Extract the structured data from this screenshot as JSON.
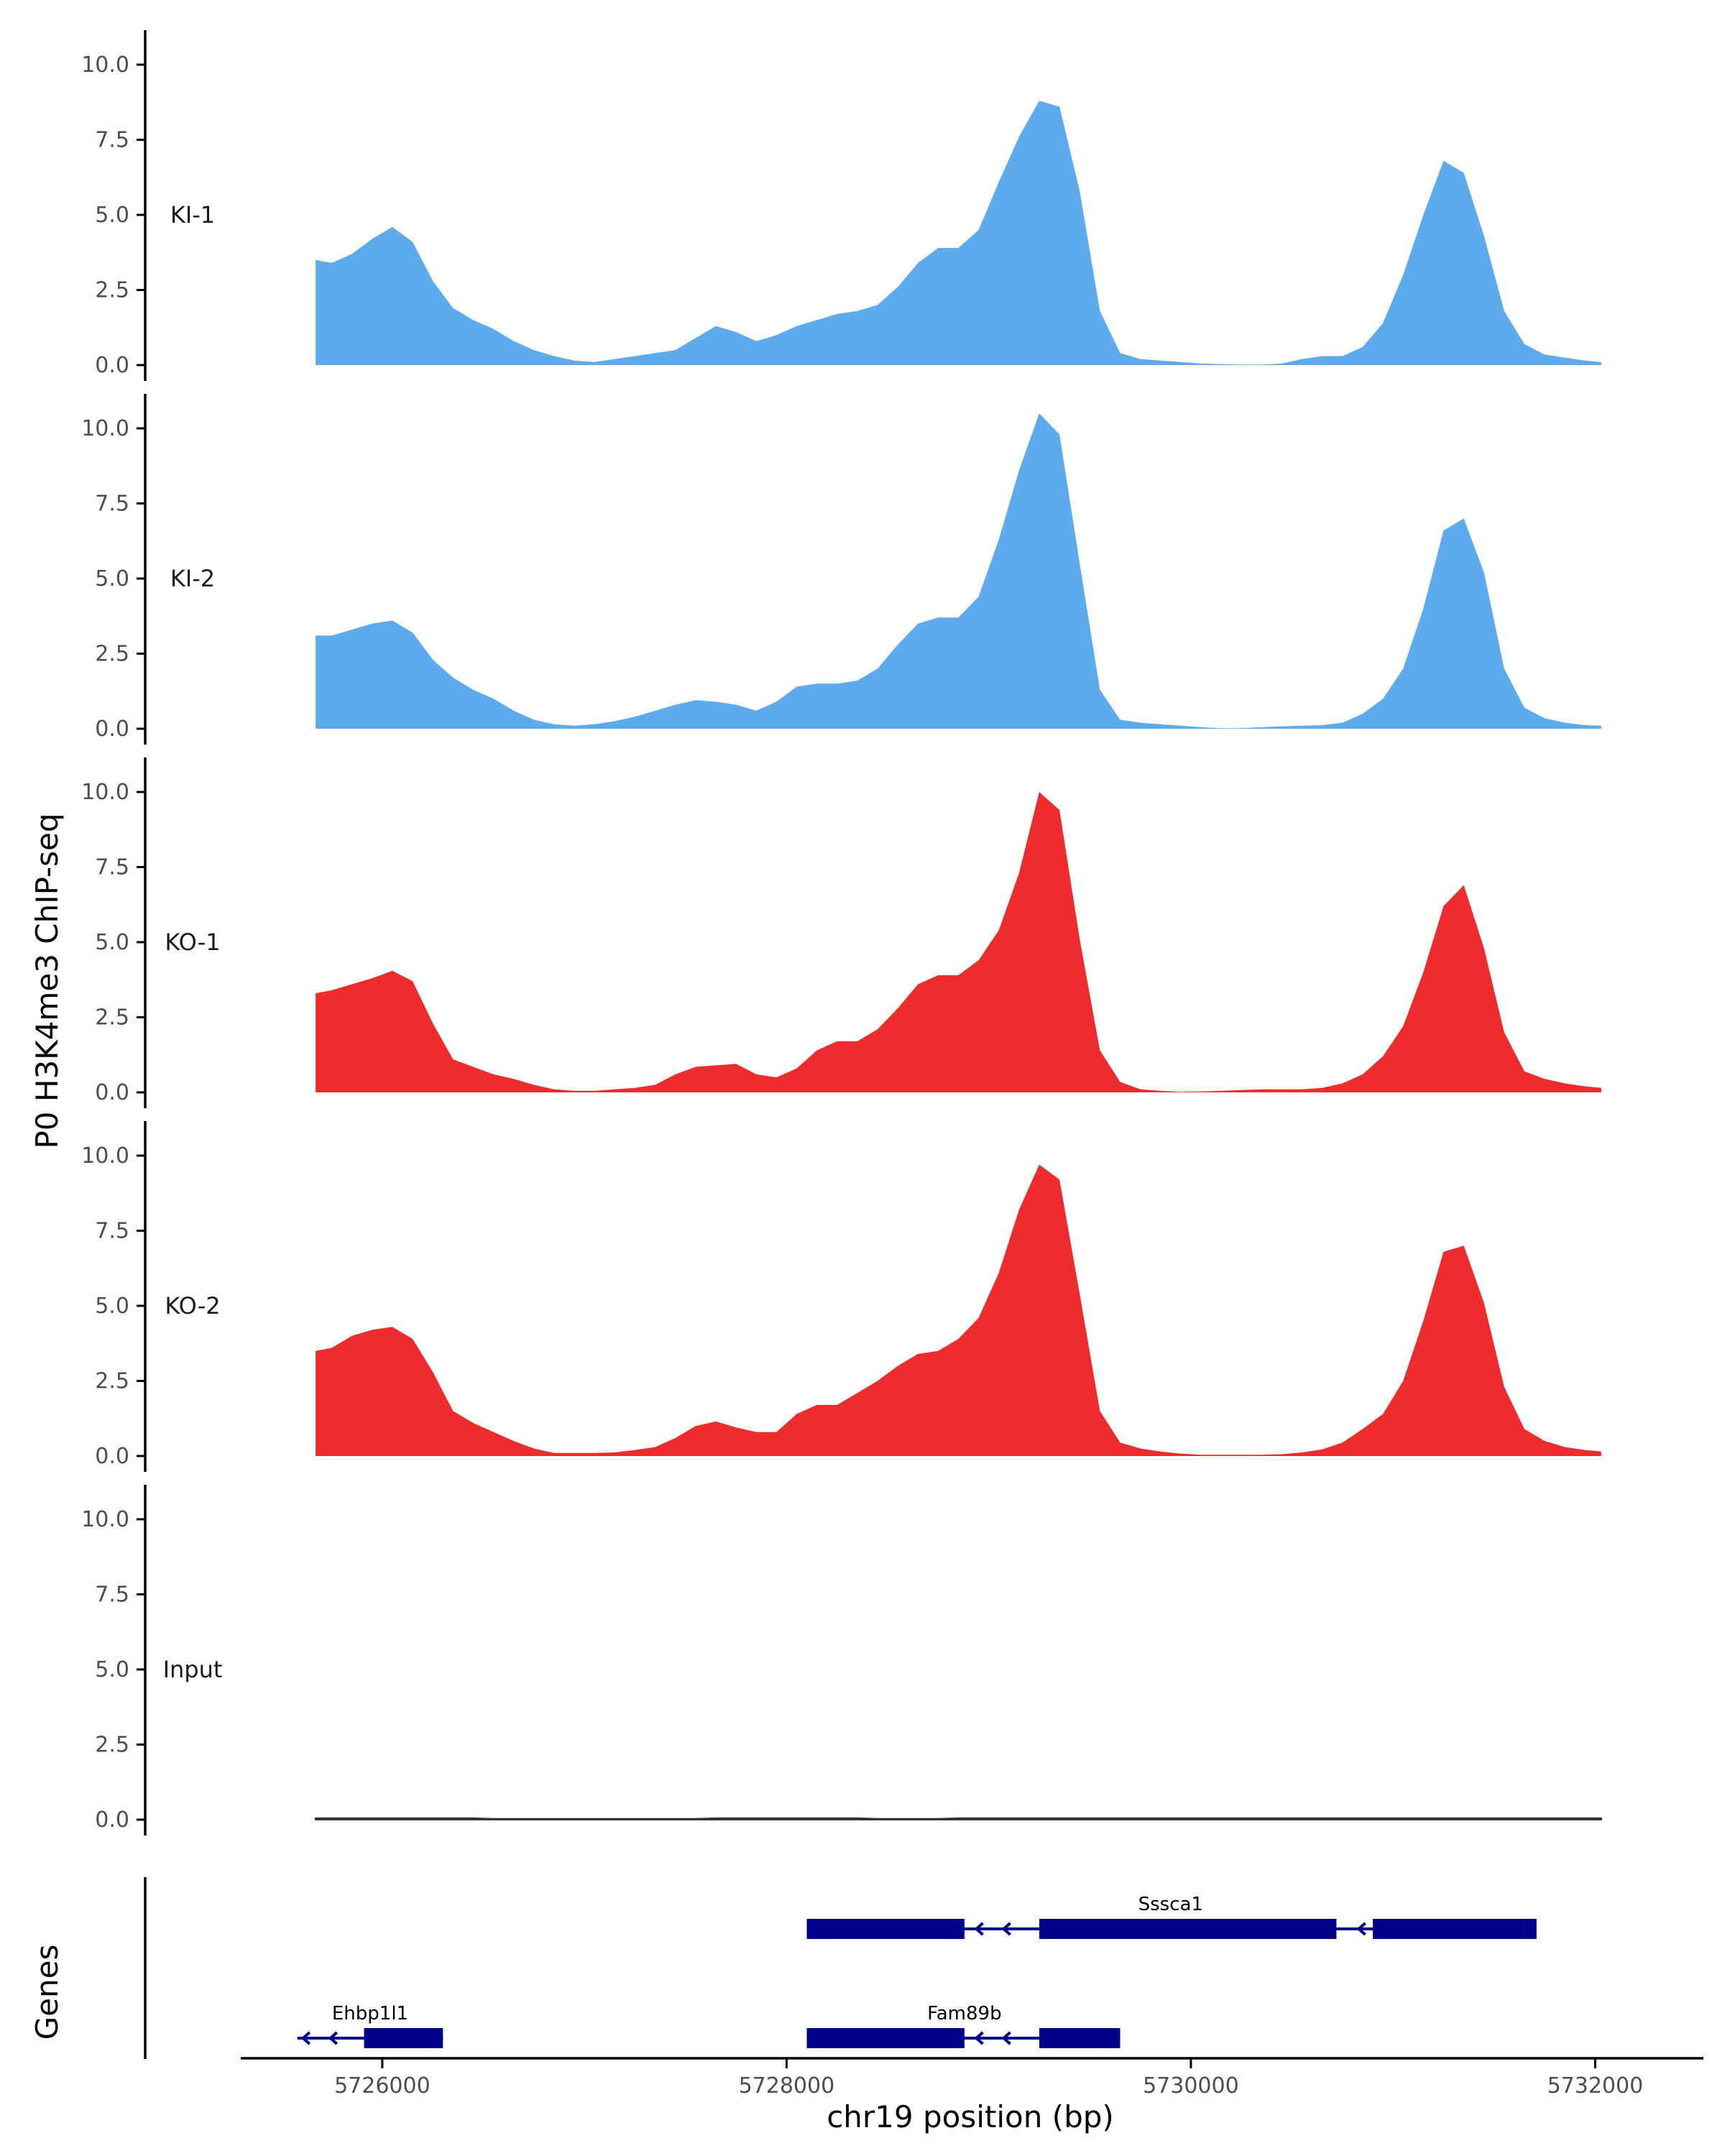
{
  "chart_data": {
    "type": "area",
    "ylabel": "P0 H3K4me3 ChIP-seq",
    "xlabel": "chr19 position (bp)",
    "ylim": [
      0,
      10.5
    ],
    "xlim": [
      5725300,
      5732500
    ],
    "y_ticks": [
      0,
      2.5,
      5,
      7.5,
      10
    ],
    "y_tick_labels": [
      "0.0",
      "2.5",
      "5.0",
      "7.5",
      "10.0"
    ],
    "x_ticks": [
      5726000,
      5728000,
      5730000,
      5732000
    ],
    "x_tick_labels": [
      "5726000",
      "5728000",
      "5730000",
      "5732000"
    ],
    "colors": {
      "KI": "#5dabec",
      "KO": "#ee2b2d",
      "Input": "#333333",
      "gene": "#00008b",
      "axis": "#000000"
    },
    "x": [
      5725670,
      5725750,
      5725850,
      5725950,
      5726050,
      5726150,
      5726250,
      5726350,
      5726450,
      5726550,
      5726650,
      5726750,
      5726850,
      5726950,
      5727050,
      5727150,
      5727250,
      5727350,
      5727450,
      5727550,
      5727650,
      5727750,
      5727850,
      5727950,
      5728050,
      5728150,
      5728250,
      5728350,
      5728450,
      5728550,
      5728650,
      5728750,
      5728850,
      5728950,
      5729050,
      5729150,
      5729250,
      5729350,
      5729450,
      5729550,
      5729650,
      5729750,
      5729850,
      5729950,
      5730050,
      5730150,
      5730250,
      5730350,
      5730450,
      5730550,
      5730650,
      5730750,
      5730850,
      5730950,
      5731050,
      5731150,
      5731250,
      5731350,
      5731450,
      5731550,
      5731650,
      5731750,
      5731850,
      5731950,
      5732030
    ],
    "series": [
      {
        "name": "KI-1",
        "color": "#5dabec",
        "values": [
          3.5,
          3.4,
          3.7,
          4.2,
          4.6,
          4.1,
          2.8,
          1.9,
          1.5,
          1.2,
          0.8,
          0.5,
          0.3,
          0.15,
          0.1,
          0.2,
          0.3,
          0.4,
          0.5,
          0.9,
          1.3,
          1.1,
          0.8,
          1.0,
          1.3,
          1.5,
          1.7,
          1.8,
          2.0,
          2.6,
          3.4,
          3.9,
          3.9,
          4.5,
          6.1,
          7.6,
          8.8,
          8.6,
          5.8,
          1.8,
          0.4,
          0.2,
          0.15,
          0.1,
          0.05,
          0.03,
          0.02,
          0.02,
          0.05,
          0.2,
          0.3,
          0.3,
          0.6,
          1.4,
          3.0,
          5.0,
          6.8,
          6.4,
          4.3,
          1.8,
          0.7,
          0.35,
          0.25,
          0.15,
          0.1
        ]
      },
      {
        "name": "KI-2",
        "color": "#5dabec",
        "values": [
          3.1,
          3.1,
          3.3,
          3.5,
          3.6,
          3.2,
          2.3,
          1.7,
          1.3,
          1.0,
          0.6,
          0.3,
          0.15,
          0.1,
          0.15,
          0.25,
          0.4,
          0.6,
          0.8,
          0.95,
          0.9,
          0.8,
          0.6,
          0.9,
          1.4,
          1.5,
          1.5,
          1.6,
          2.0,
          2.8,
          3.5,
          3.7,
          3.7,
          4.4,
          6.3,
          8.6,
          10.5,
          9.8,
          5.5,
          1.3,
          0.3,
          0.2,
          0.15,
          0.1,
          0.05,
          0.02,
          0.02,
          0.05,
          0.08,
          0.1,
          0.12,
          0.2,
          0.5,
          1.0,
          2.0,
          4.0,
          6.6,
          7.0,
          5.2,
          2.0,
          0.7,
          0.35,
          0.2,
          0.12,
          0.1
        ]
      },
      {
        "name": "KO-1",
        "color": "#ee2b2d",
        "values": [
          3.3,
          3.4,
          3.6,
          3.8,
          4.05,
          3.7,
          2.3,
          1.1,
          0.85,
          0.6,
          0.45,
          0.25,
          0.1,
          0.05,
          0.05,
          0.1,
          0.15,
          0.25,
          0.6,
          0.85,
          0.9,
          0.95,
          0.6,
          0.5,
          0.8,
          1.4,
          1.7,
          1.7,
          2.1,
          2.8,
          3.6,
          3.9,
          3.9,
          4.4,
          5.4,
          7.3,
          10.0,
          9.4,
          5.1,
          1.4,
          0.35,
          0.1,
          0.05,
          0.02,
          0.03,
          0.05,
          0.08,
          0.1,
          0.1,
          0.1,
          0.15,
          0.3,
          0.6,
          1.2,
          2.2,
          4.0,
          6.2,
          6.9,
          4.8,
          2.0,
          0.7,
          0.45,
          0.3,
          0.2,
          0.15
        ]
      },
      {
        "name": "KO-2",
        "color": "#ee2b2d",
        "values": [
          3.5,
          3.6,
          4.0,
          4.2,
          4.3,
          3.9,
          2.8,
          1.5,
          1.1,
          0.8,
          0.5,
          0.25,
          0.1,
          0.1,
          0.1,
          0.12,
          0.2,
          0.3,
          0.6,
          1.0,
          1.15,
          0.95,
          0.8,
          0.8,
          1.4,
          1.7,
          1.7,
          2.1,
          2.5,
          3.0,
          3.4,
          3.5,
          3.9,
          4.6,
          6.1,
          8.2,
          9.7,
          9.2,
          5.4,
          1.5,
          0.45,
          0.25,
          0.15,
          0.08,
          0.04,
          0.04,
          0.04,
          0.04,
          0.06,
          0.12,
          0.22,
          0.45,
          0.9,
          1.4,
          2.5,
          4.5,
          6.8,
          7.0,
          5.1,
          2.3,
          0.9,
          0.5,
          0.3,
          0.2,
          0.15
        ]
      },
      {
        "name": "Input",
        "color": "#333333",
        "values": [
          0.05,
          0.05,
          0.05,
          0.05,
          0.05,
          0.05,
          0.05,
          0.05,
          0.05,
          0.03,
          0.03,
          0.03,
          0.03,
          0.03,
          0.03,
          0.03,
          0.03,
          0.03,
          0.03,
          0.03,
          0.05,
          0.05,
          0.05,
          0.05,
          0.05,
          0.05,
          0.05,
          0.05,
          0.03,
          0.03,
          0.03,
          0.03,
          0.05,
          0.05,
          0.05,
          0.05,
          0.05,
          0.05,
          0.05,
          0.05,
          0.05,
          0.05,
          0.05,
          0.05,
          0.05,
          0.05,
          0.05,
          0.05,
          0.05,
          0.05,
          0.05,
          0.05,
          0.05,
          0.05,
          0.05,
          0.05,
          0.05,
          0.05,
          0.05,
          0.05,
          0.05,
          0.05,
          0.05,
          0.05,
          0.05
        ]
      }
    ],
    "genes_track_label": "Genes",
    "genes": [
      {
        "name": "Sssca1",
        "strand": "-",
        "row": 1,
        "start": 5728100,
        "end": 5731700,
        "exons": [
          [
            5728100,
            5728880
          ],
          [
            5729250,
            5730720
          ],
          [
            5730900,
            5731650
          ],
          [
            5731650,
            5731710
          ]
        ]
      },
      {
        "name": "Ehbp1l1",
        "strand": "-",
        "row": 2,
        "start": 5725580,
        "end": 5726300,
        "exons": [
          [
            5725910,
            5726300
          ]
        ]
      },
      {
        "name": "Fam89b",
        "strand": "-",
        "row": 2,
        "start": 5728100,
        "end": 5729650,
        "exons": [
          [
            5728100,
            5728880
          ],
          [
            5729250,
            5729650
          ]
        ]
      }
    ]
  }
}
